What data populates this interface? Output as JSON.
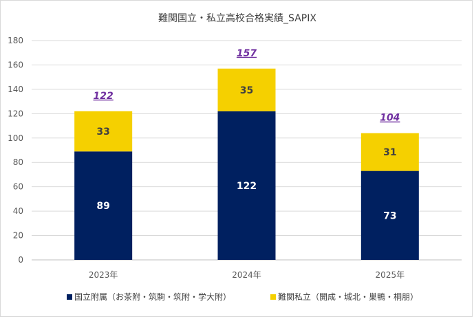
{
  "chart_data": {
    "type": "bar",
    "stacked": true,
    "title": "難関国立・私立高校合格実績_SAPIX",
    "categories": [
      "2023年",
      "2024年",
      "2025年"
    ],
    "series": [
      {
        "name": "国立附属（お茶附・筑駒・筑附・学大附）",
        "values": [
          89,
          122,
          73
        ],
        "color": "#002060",
        "label_color": "#ffffff"
      },
      {
        "name": "難関私立（開成・城北・巣鴨・桐朋）",
        "values": [
          33,
          35,
          31
        ],
        "color": "#f5d000",
        "label_color": "#404040"
      }
    ],
    "totals": [
      122,
      157,
      104
    ],
    "total_color": "#7030a0",
    "ylim": [
      0,
      180
    ],
    "yticks": [
      0,
      20,
      40,
      60,
      80,
      100,
      120,
      140,
      160,
      180
    ],
    "grid": true,
    "legend_position": "bottom"
  }
}
